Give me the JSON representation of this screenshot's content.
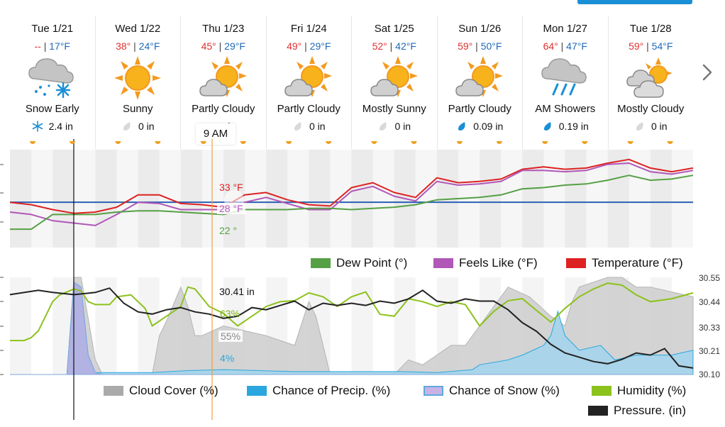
{
  "days": [
    {
      "label": "Tue 1/21",
      "hi": "--",
      "lo": "17°F",
      "condition": "Snow Early",
      "icon": "snow-cloud-icon",
      "precip": "2.4 in",
      "precip_icon": "snowflake-icon"
    },
    {
      "label": "Wed 1/22",
      "hi": "38°",
      "lo": "24°F",
      "condition": "Sunny",
      "icon": "sun-icon",
      "precip": "0 in",
      "precip_icon": "dry-drop-icon"
    },
    {
      "label": "Thu 1/23",
      "hi": "45°",
      "lo": "29°F",
      "condition": "Partly Cloudy",
      "icon": "partly-cloudy-icon",
      "precip": "in",
      "precip_icon": "none"
    },
    {
      "label": "Fri 1/24",
      "hi": "49°",
      "lo": "29°F",
      "condition": "Partly Cloudy",
      "icon": "partly-cloudy-icon",
      "precip": "0 in",
      "precip_icon": "dry-drop-icon"
    },
    {
      "label": "Sat 1/25",
      "hi": "52°",
      "lo": "42°F",
      "condition": "Mostly Sunny",
      "icon": "partly-cloudy-icon",
      "precip": "0 in",
      "precip_icon": "dry-drop-icon"
    },
    {
      "label": "Sun 1/26",
      "hi": "59°",
      "lo": "50°F",
      "condition": "Partly Cloudy",
      "icon": "partly-cloudy-icon",
      "precip": "0.09 in",
      "precip_icon": "rain-drop-icon"
    },
    {
      "label": "Mon 1/27",
      "hi": "64°",
      "lo": "47°F",
      "condition": "AM Showers",
      "icon": "rain-cloud-icon",
      "precip": "0.19 in",
      "precip_icon": "rain-drop-icon"
    },
    {
      "label": "Tue 1/28",
      "hi": "59°",
      "lo": "54°F",
      "condition": "Mostly Cloudy",
      "icon": "mostly-cloudy-icon",
      "precip": "0 in",
      "precip_icon": "dry-drop-icon"
    }
  ],
  "hover_time": "9 AM",
  "colors": {
    "temperature": "#dd2222",
    "feels_like": "#b057b8",
    "dew_point": "#55a045",
    "freezing_line": "#2a5fb5",
    "cloud_cover": "#aaaaaa",
    "precip_chance": "#2aa7df",
    "snow_chance": "#9a9adb",
    "humidity": "#8cc21c",
    "pressure": "#222222",
    "cursor_now": "#111111",
    "cursor_hover": "#f0a040"
  },
  "chart_data": [
    {
      "type": "line",
      "x_unit": "hours from Tue 1/21 00:00",
      "x_range": [
        0,
        192
      ],
      "ylim": [
        -5,
        75
      ],
      "freezing_line": 32,
      "legend": [
        "Dew Point (°)",
        "Feels Like (°F)",
        "Temperature (°F)"
      ],
      "legend_placement": "bottom-right",
      "hover_readouts": {
        "temperature": "33 °F",
        "feels_like": "28 °F",
        "dew_point": "22 °"
      },
      "series": [
        {
          "name": "Temperature (°F)",
          "key": "temperature",
          "x": [
            0,
            6,
            12,
            18,
            24,
            30,
            36,
            42,
            48,
            54,
            60,
            66,
            72,
            78,
            84,
            90,
            96,
            102,
            108,
            114,
            120,
            126,
            132,
            138,
            144,
            150,
            156,
            162,
            168,
            174,
            180,
            186,
            192
          ],
          "values": [
            32,
            30,
            26,
            23,
            24,
            28,
            38,
            38,
            31,
            30,
            28,
            38,
            40,
            34,
            30,
            29,
            44,
            48,
            40,
            36,
            52,
            48,
            49,
            51,
            59,
            61,
            59,
            60,
            64,
            67,
            60,
            57,
            60
          ]
        },
        {
          "name": "Feels Like (°F)",
          "key": "feels_like",
          "x": [
            0,
            6,
            12,
            18,
            24,
            30,
            36,
            42,
            48,
            54,
            60,
            66,
            72,
            78,
            84,
            90,
            96,
            102,
            108,
            114,
            120,
            126,
            132,
            138,
            144,
            150,
            156,
            162,
            168,
            174,
            180,
            186,
            192
          ],
          "values": [
            24,
            22,
            17,
            15,
            13,
            22,
            32,
            31,
            26,
            26,
            26,
            32,
            36,
            31,
            26,
            26,
            41,
            45,
            37,
            33,
            49,
            46,
            47,
            49,
            58,
            58,
            57,
            58,
            63,
            64,
            57,
            55,
            58
          ]
        },
        {
          "name": "Dew Point (°)",
          "key": "dew_point",
          "x": [
            0,
            6,
            12,
            18,
            24,
            30,
            36,
            42,
            48,
            54,
            60,
            66,
            72,
            78,
            84,
            90,
            96,
            102,
            108,
            114,
            120,
            126,
            132,
            138,
            144,
            150,
            156,
            162,
            168,
            174,
            180,
            186,
            192
          ],
          "values": [
            10,
            10,
            22,
            22,
            22,
            24,
            25,
            25,
            24,
            23,
            22,
            26,
            26,
            26,
            27,
            27,
            26,
            27,
            28,
            30,
            34,
            35,
            36,
            38,
            43,
            44,
            46,
            47,
            50,
            54,
            50,
            51,
            54
          ]
        }
      ]
    },
    {
      "type": "area",
      "x_unit": "hours from Tue 1/21 00:00",
      "x_range": [
        0,
        192
      ],
      "ylim_left": [
        0,
        100
      ],
      "ylim_right": [
        30.1,
        30.55
      ],
      "right_ticks": [
        "30.55",
        "30.44",
        "30.33",
        "30.21",
        "30.10"
      ],
      "legend": [
        "Cloud Cover (%)",
        "Chance of Precip. (%)",
        "Chance of Snow (%)",
        "Humidity (%)",
        "Pressure. (in)"
      ],
      "legend_placement": "bottom-right",
      "hover_readouts": {
        "pressure": "30.41 in",
        "humidity": "63%",
        "cloud_cover": "55%",
        "precip_chance": "4%"
      },
      "series": [
        {
          "name": "Cloud Cover (%)",
          "key": "cloud_cover",
          "x": [
            0,
            16,
            18,
            20,
            24,
            26,
            40,
            42,
            44,
            48,
            50,
            52,
            54,
            60,
            66,
            72,
            76,
            80,
            84,
            86,
            88,
            90,
            98,
            104,
            108,
            112,
            116,
            120,
            124,
            128,
            130,
            134,
            140,
            146,
            152,
            156,
            158,
            160,
            164,
            168,
            172,
            176,
            180,
            186,
            192
          ],
          "values": [
            0,
            0,
            100,
            100,
            15,
            0,
            0,
            40,
            55,
            90,
            70,
            40,
            40,
            50,
            45,
            40,
            35,
            30,
            75,
            60,
            30,
            0,
            0,
            0,
            0,
            15,
            10,
            20,
            30,
            30,
            40,
            60,
            90,
            80,
            60,
            50,
            75,
            90,
            95,
            100,
            100,
            90,
            90,
            85,
            80
          ]
        },
        {
          "name": "Chance of Precip. (%)",
          "key": "precip_chance",
          "x": [
            0,
            16,
            18,
            20,
            22,
            24,
            30,
            40,
            50,
            60,
            70,
            80,
            90,
            100,
            110,
            120,
            130,
            132,
            140,
            144,
            150,
            152,
            154,
            156,
            160,
            166,
            170,
            176,
            180,
            186,
            192
          ],
          "values": [
            0,
            0,
            95,
            90,
            20,
            2,
            2,
            2,
            4,
            5,
            4,
            3,
            3,
            3,
            3,
            2,
            5,
            10,
            15,
            20,
            30,
            40,
            65,
            40,
            25,
            30,
            15,
            20,
            20,
            20,
            25
          ]
        },
        {
          "name": "Chance of Snow (%)",
          "key": "snow_chance",
          "x": [
            0,
            16,
            18,
            20,
            22,
            24,
            26,
            192
          ],
          "values": [
            0,
            0,
            95,
            90,
            20,
            2,
            0,
            0
          ]
        },
        {
          "name": "Humidity (%)",
          "key": "humidity",
          "x": [
            0,
            4,
            6,
            8,
            12,
            14,
            18,
            20,
            22,
            24,
            28,
            30,
            34,
            38,
            40,
            44,
            48,
            50,
            52,
            56,
            60,
            64,
            68,
            72,
            76,
            80,
            84,
            88,
            92,
            96,
            100,
            104,
            108,
            112,
            116,
            120,
            124,
            128,
            132,
            136,
            140,
            144,
            148,
            152,
            156,
            160,
            164,
            168,
            172,
            176,
            180,
            186,
            192
          ],
          "values": [
            35,
            35,
            38,
            45,
            75,
            82,
            88,
            86,
            75,
            72,
            72,
            80,
            82,
            68,
            50,
            60,
            70,
            90,
            88,
            70,
            63,
            50,
            60,
            70,
            75,
            76,
            84,
            80,
            70,
            80,
            85,
            62,
            60,
            78,
            75,
            70,
            75,
            72,
            50,
            65,
            76,
            78,
            66,
            54,
            68,
            80,
            88,
            94,
            92,
            82,
            75,
            78,
            84
          ]
        },
        {
          "name": "Pressure. (in)",
          "key": "pressure",
          "x": [
            0,
            8,
            12,
            18,
            24,
            28,
            32,
            36,
            40,
            44,
            48,
            52,
            56,
            60,
            64,
            68,
            72,
            76,
            80,
            84,
            88,
            92,
            96,
            100,
            104,
            108,
            112,
            116,
            120,
            124,
            128,
            132,
            136,
            140,
            144,
            148,
            152,
            156,
            160,
            164,
            168,
            172,
            176,
            180,
            184,
            188,
            192
          ],
          "values": [
            30.47,
            30.49,
            30.48,
            30.47,
            30.48,
            30.5,
            30.43,
            30.39,
            30.38,
            30.4,
            30.41,
            30.39,
            30.38,
            30.36,
            30.37,
            30.41,
            30.4,
            30.42,
            30.44,
            30.4,
            30.43,
            30.42,
            30.43,
            30.42,
            30.44,
            30.43,
            30.45,
            30.49,
            30.44,
            30.43,
            30.45,
            30.44,
            30.44,
            30.4,
            30.34,
            30.3,
            30.24,
            30.2,
            30.18,
            30.16,
            30.15,
            30.17,
            30.2,
            30.19,
            30.22,
            30.14,
            30.13
          ]
        }
      ]
    }
  ]
}
